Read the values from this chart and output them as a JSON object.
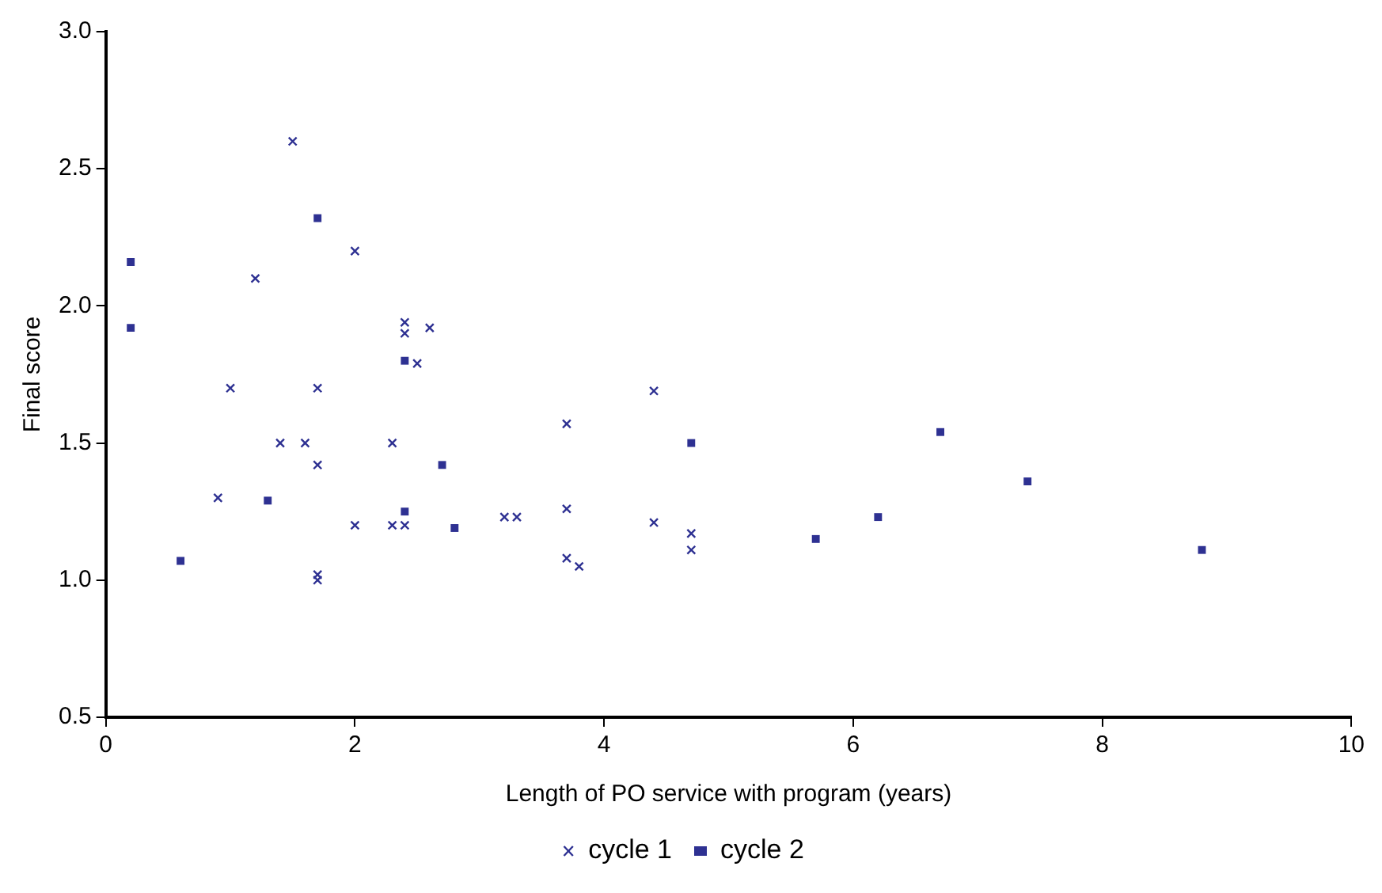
{
  "chart_data": {
    "type": "scatter",
    "xlabel": "Length of PO service with program (years)",
    "ylabel": "Final score",
    "xlim": [
      0,
      10
    ],
    "xticks": [
      0,
      2,
      4,
      6,
      8,
      10
    ],
    "ylim": [
      0.5,
      3
    ],
    "yticks": [
      {
        "value": 0.5,
        "label": "0.5"
      },
      {
        "value": 1,
        "label": "1.0"
      },
      {
        "value": 1.5,
        "label": "1.5"
      },
      {
        "value": 2,
        "label": "2.0"
      },
      {
        "value": 2.5,
        "label": "2.5"
      },
      {
        "value": 3,
        "label": "3.0"
      }
    ],
    "grid": false,
    "legend": "bottom",
    "series": [
      {
        "name": "cycle 1",
        "color": "#2e3192",
        "marker": "cross",
        "x": [
          1.5,
          1.2,
          2.0,
          2.4,
          2.4,
          2.6,
          2.5,
          1.0,
          1.7,
          1.4,
          1.6,
          2.3,
          1.7,
          0.9,
          2.0,
          2.3,
          2.4,
          1.7,
          1.7,
          3.2,
          3.3,
          3.7,
          3.7,
          3.7,
          3.8,
          4.4,
          4.4,
          4.7,
          4.7
        ],
        "values": [
          2.6,
          2.1,
          2.2,
          1.94,
          1.9,
          1.92,
          1.79,
          1.7,
          1.7,
          1.5,
          1.5,
          1.5,
          1.42,
          1.3,
          1.2,
          1.2,
          1.2,
          1.02,
          1.0,
          1.23,
          1.23,
          1.57,
          1.26,
          1.08,
          1.05,
          1.69,
          1.21,
          1.17,
          1.11
        ]
      },
      {
        "name": "cycle 2",
        "color": "#2e3192",
        "marker": "square",
        "x": [
          0.2,
          0.2,
          1.7,
          2.4,
          0.6,
          1.3,
          2.4,
          2.7,
          2.8,
          4.7,
          5.7,
          6.2,
          6.7,
          7.4,
          8.8
        ],
        "values": [
          2.16,
          1.92,
          2.32,
          1.8,
          1.07,
          1.29,
          1.25,
          1.42,
          1.19,
          1.5,
          1.15,
          1.23,
          1.54,
          1.36,
          1.11
        ]
      }
    ]
  }
}
